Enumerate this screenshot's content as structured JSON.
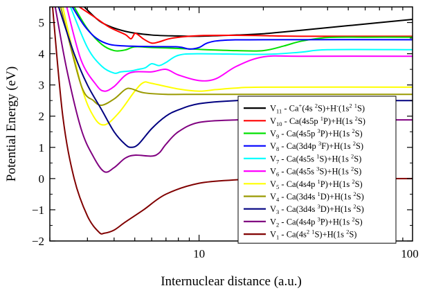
{
  "chart_data": {
    "type": "line",
    "xlabel": "Internuclear distance (a.u.)",
    "ylabel": "Potential Energy (eV)",
    "x_scale": "log",
    "xlim": [
      2,
      100
    ],
    "ylim": [
      -2,
      5.5
    ],
    "x_ticks": [
      {
        "value": 10,
        "label": "10"
      },
      {
        "value": 100,
        "label": "100"
      }
    ],
    "y_ticks": [
      {
        "value": -2,
        "label": "−2"
      },
      {
        "value": -1,
        "label": "−1"
      },
      {
        "value": 0,
        "label": "0"
      },
      {
        "value": 1,
        "label": "1"
      },
      {
        "value": 2,
        "label": "2"
      },
      {
        "value": 3,
        "label": "3"
      },
      {
        "value": 4,
        "label": "4"
      },
      {
        "value": 5,
        "label": "5"
      }
    ],
    "grid": false,
    "legend_position": "bottom-right",
    "series": [
      {
        "name": "V11",
        "color": "#000000",
        "legend": [
          {
            "t": "V"
          },
          {
            "t": "11",
            "s": "sub"
          },
          {
            "t": " - Ca"
          },
          {
            "t": "+",
            "s": "sup"
          },
          {
            "t": "(4s "
          },
          {
            "t": "2",
            "s": "sup"
          },
          {
            "t": "S)+H"
          },
          {
            "t": "-",
            "s": "sup"
          },
          {
            "t": "(1s"
          },
          {
            "t": "2",
            "s": "sup"
          },
          {
            "t": " "
          },
          {
            "t": "1",
            "s": "sup"
          },
          {
            "t": "S)"
          }
        ],
        "points": [
          [
            2.9,
            5.5
          ],
          [
            3.5,
            5.0
          ],
          [
            4.5,
            4.72
          ],
          [
            6,
            4.6
          ],
          [
            8,
            4.57
          ],
          [
            10,
            4.56
          ],
          [
            15,
            4.6
          ],
          [
            20,
            4.64
          ],
          [
            30,
            4.75
          ],
          [
            50,
            4.9
          ],
          [
            100,
            5.1
          ]
        ]
      },
      {
        "name": "V10",
        "color": "#ff0000",
        "legend": [
          {
            "t": "V"
          },
          {
            "t": "10",
            "s": "sub"
          },
          {
            "t": " - Ca(4s5p "
          },
          {
            "t": "1",
            "s": "sup"
          },
          {
            "t": "P)+H(1s "
          },
          {
            "t": "2",
            "s": "sup"
          },
          {
            "t": "S)"
          }
        ],
        "points": [
          [
            2.75,
            5.5
          ],
          [
            3.2,
            5.2
          ],
          [
            3.8,
            4.85
          ],
          [
            4.5,
            4.62
          ],
          [
            4.8,
            4.48
          ],
          [
            5.0,
            4.65
          ],
          [
            5.2,
            4.6
          ],
          [
            5.5,
            4.47
          ],
          [
            6.0,
            4.34
          ],
          [
            6.5,
            4.38
          ],
          [
            7.5,
            4.5
          ],
          [
            10,
            4.58
          ],
          [
            15,
            4.59
          ],
          [
            20,
            4.58
          ],
          [
            30,
            4.56
          ],
          [
            100,
            4.56
          ]
        ]
      },
      {
        "name": "V9",
        "color": "#00e000",
        "legend": [
          {
            "t": "V"
          },
          {
            "t": "9",
            "s": "sub"
          },
          {
            "t": " - Ca(4s5p "
          },
          {
            "t": "3",
            "s": "sup"
          },
          {
            "t": "P)+H(1s "
          },
          {
            "t": "2",
            "s": "sup"
          },
          {
            "t": "S)"
          }
        ],
        "points": [
          [
            2.6,
            5.5
          ],
          [
            3.0,
            4.8
          ],
          [
            3.5,
            4.3
          ],
          [
            4.0,
            4.1
          ],
          [
            4.5,
            4.12
          ],
          [
            5.0,
            4.22
          ],
          [
            6,
            4.2
          ],
          [
            8,
            4.17
          ],
          [
            10,
            4.14
          ],
          [
            15,
            4.1
          ],
          [
            20,
            4.1
          ],
          [
            25,
            4.25
          ],
          [
            30,
            4.4
          ],
          [
            40,
            4.52
          ],
          [
            60,
            4.53
          ],
          [
            100,
            4.53
          ]
        ]
      },
      {
        "name": "V8",
        "color": "#0000ff",
        "legend": [
          {
            "t": "V"
          },
          {
            "t": "8",
            "s": "sub"
          },
          {
            "t": " - Ca(3d4p "
          },
          {
            "t": "3",
            "s": "sup"
          },
          {
            "t": "F)+H(1s "
          },
          {
            "t": "2",
            "s": "sup"
          },
          {
            "t": "S)"
          }
        ],
        "points": [
          [
            2.55,
            5.5
          ],
          [
            2.9,
            4.9
          ],
          [
            3.3,
            4.5
          ],
          [
            3.8,
            4.3
          ],
          [
            4.5,
            4.25
          ],
          [
            6,
            4.23
          ],
          [
            8,
            4.22
          ],
          [
            9,
            4.15
          ],
          [
            10,
            4.2
          ],
          [
            11,
            4.35
          ],
          [
            13,
            4.43
          ],
          [
            20,
            4.45
          ],
          [
            100,
            4.45
          ]
        ]
      },
      {
        "name": "V7",
        "color": "#00ffff",
        "legend": [
          {
            "t": "V"
          },
          {
            "t": "7",
            "s": "sub"
          },
          {
            "t": " - Ca(4s5s "
          },
          {
            "t": "1",
            "s": "sup"
          },
          {
            "t": "S)+H(1s "
          },
          {
            "t": "2",
            "s": "sup"
          },
          {
            "t": "S)"
          }
        ],
        "points": [
          [
            2.5,
            5.5
          ],
          [
            3.0,
            4.2
          ],
          [
            3.5,
            3.6
          ],
          [
            4.0,
            3.38
          ],
          [
            4.3,
            3.42
          ],
          [
            4.8,
            3.45
          ],
          [
            5.2,
            3.5
          ],
          [
            5.6,
            3.55
          ],
          [
            6.0,
            3.68
          ],
          [
            6.5,
            3.62
          ],
          [
            7,
            3.72
          ],
          [
            8,
            3.95
          ],
          [
            10,
            4.0
          ],
          [
            20,
            3.98
          ],
          [
            30,
            4.05
          ],
          [
            40,
            4.13
          ],
          [
            100,
            4.13
          ]
        ]
      },
      {
        "name": "V6",
        "color": "#ff00ff",
        "legend": [
          {
            "t": "V"
          },
          {
            "t": "6",
            "s": "sub"
          },
          {
            "t": " - Ca(4s5s "
          },
          {
            "t": "3",
            "s": "sup"
          },
          {
            "t": "S)+H(1s "
          },
          {
            "t": "2",
            "s": "sup"
          },
          {
            "t": "S)"
          }
        ],
        "points": [
          [
            2.4,
            5.5
          ],
          [
            2.8,
            3.8
          ],
          [
            3.3,
            3.0
          ],
          [
            3.6,
            2.8
          ],
          [
            4.0,
            2.95
          ],
          [
            4.5,
            3.3
          ],
          [
            5,
            3.42
          ],
          [
            6,
            3.42
          ],
          [
            7,
            3.5
          ],
          [
            8,
            3.32
          ],
          [
            10,
            3.14
          ],
          [
            12,
            3.2
          ],
          [
            15,
            3.6
          ],
          [
            20,
            3.9
          ],
          [
            30,
            3.92
          ],
          [
            100,
            3.92
          ]
        ]
      },
      {
        "name": "V5",
        "color": "#ffff00",
        "legend": [
          {
            "t": "V"
          },
          {
            "t": "5",
            "s": "sub"
          },
          {
            "t": " - Ca(4s4p "
          },
          {
            "t": "1",
            "s": "sup"
          },
          {
            "t": "P)+H(1s "
          },
          {
            "t": "2",
            "s": "sup"
          },
          {
            "t": "S)"
          }
        ],
        "points": [
          [
            2.3,
            5.5
          ],
          [
            2.8,
            3.0
          ],
          [
            3.2,
            2.0
          ],
          [
            3.6,
            1.72
          ],
          [
            4.2,
            2.1
          ],
          [
            5.0,
            2.8
          ],
          [
            5.5,
            3.08
          ],
          [
            6,
            3.05
          ],
          [
            8,
            2.87
          ],
          [
            10,
            2.8
          ],
          [
            12,
            2.85
          ],
          [
            15,
            2.9
          ],
          [
            20,
            2.93
          ],
          [
            100,
            2.93
          ]
        ]
      },
      {
        "name": "V4",
        "color": "#999900",
        "legend": [
          {
            "t": "V"
          },
          {
            "t": "4",
            "s": "sub"
          },
          {
            "t": " - Ca(3d4s "
          },
          {
            "t": "1",
            "s": "sup"
          },
          {
            "t": "D)+H(1s "
          },
          {
            "t": "2",
            "s": "sup"
          },
          {
            "t": "S)"
          }
        ],
        "points": [
          [
            2.25,
            5.5
          ],
          [
            2.8,
            3.0
          ],
          [
            3.2,
            2.5
          ],
          [
            3.5,
            2.35
          ],
          [
            4.0,
            2.55
          ],
          [
            4.5,
            2.85
          ],
          [
            4.8,
            2.88
          ],
          [
            5.5,
            2.75
          ],
          [
            7,
            2.7
          ],
          [
            10,
            2.7
          ],
          [
            20,
            2.7
          ],
          [
            100,
            2.7
          ]
        ]
      },
      {
        "name": "V3",
        "color": "#000080",
        "legend": [
          {
            "t": "V"
          },
          {
            "t": "3",
            "s": "sub"
          },
          {
            "t": " - Ca(3d4s "
          },
          {
            "t": "3",
            "s": "sup"
          },
          {
            "t": "D)+H(1s "
          },
          {
            "t": "2",
            "s": "sup"
          },
          {
            "t": "S)"
          }
        ],
        "points": [
          [
            2.2,
            5.5
          ],
          [
            2.6,
            4.0
          ],
          [
            3.0,
            3.0
          ],
          [
            3.5,
            2.2
          ],
          [
            4.0,
            1.5
          ],
          [
            4.5,
            1.1
          ],
          [
            4.8,
            1.0
          ],
          [
            5.2,
            1.1
          ],
          [
            6,
            1.6
          ],
          [
            7,
            2.0
          ],
          [
            8,
            2.2
          ],
          [
            10,
            2.4
          ],
          [
            15,
            2.5
          ],
          [
            20,
            2.5
          ],
          [
            100,
            2.5
          ]
        ]
      },
      {
        "name": "V2",
        "color": "#800080",
        "legend": [
          {
            "t": "V"
          },
          {
            "t": "2",
            "s": "sub"
          },
          {
            "t": " - Ca(4s4p "
          },
          {
            "t": "3",
            "s": "sup"
          },
          {
            "t": "P)+H(1s "
          },
          {
            "t": "2",
            "s": "sup"
          },
          {
            "t": "S)"
          }
        ],
        "points": [
          [
            2.12,
            5.5
          ],
          [
            2.4,
            3.5
          ],
          [
            2.8,
            1.6
          ],
          [
            3.2,
            0.7
          ],
          [
            3.6,
            0.22
          ],
          [
            4.0,
            0.35
          ],
          [
            4.5,
            0.65
          ],
          [
            5,
            0.75
          ],
          [
            6,
            0.72
          ],
          [
            6.5,
            0.82
          ],
          [
            7,
            1.1
          ],
          [
            8,
            1.5
          ],
          [
            10,
            1.8
          ],
          [
            15,
            1.88
          ],
          [
            20,
            1.88
          ],
          [
            100,
            1.88
          ]
        ]
      },
      {
        "name": "V1",
        "color": "#800000",
        "legend": [
          {
            "t": "V"
          },
          {
            "t": "1",
            "s": "sub"
          },
          {
            "t": " - Ca(4s"
          },
          {
            "t": "2",
            "s": "sup"
          },
          {
            "t": " "
          },
          {
            "t": "1",
            "s": "sup"
          },
          {
            "t": "S)+H(1s "
          },
          {
            "t": "2",
            "s": "sup"
          },
          {
            "t": "S)"
          }
        ],
        "points": [
          [
            2.06,
            5.5
          ],
          [
            2.3,
            2.0
          ],
          [
            2.6,
            0.0
          ],
          [
            3.0,
            -1.2
          ],
          [
            3.4,
            -1.72
          ],
          [
            3.6,
            -1.75
          ],
          [
            4.0,
            -1.65
          ],
          [
            4.5,
            -1.4
          ],
          [
            5.5,
            -1.0
          ],
          [
            7,
            -0.5
          ],
          [
            10,
            -0.15
          ],
          [
            15,
            -0.04
          ],
          [
            20,
            -0.01
          ],
          [
            100,
            0.0
          ]
        ]
      }
    ]
  }
}
